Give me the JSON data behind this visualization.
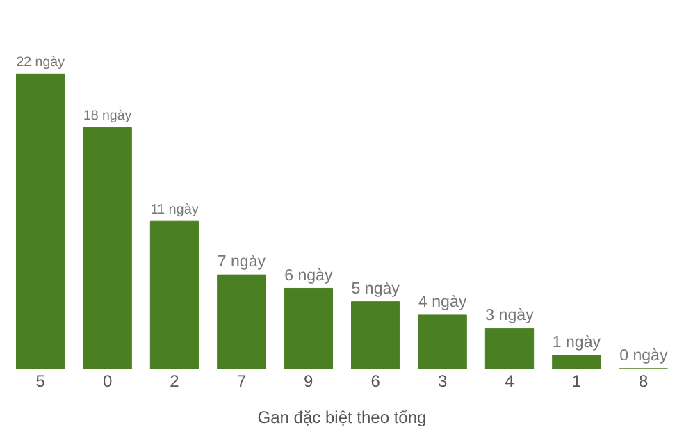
{
  "chart_data": {
    "type": "bar",
    "xlabel": "Gan đặc biệt theo tổng",
    "categories": [
      "5",
      "0",
      "2",
      "7",
      "9",
      "6",
      "3",
      "4",
      "1",
      "8"
    ],
    "values": [
      22,
      18,
      11,
      7,
      6,
      5,
      4,
      3,
      1,
      0
    ],
    "value_labels": [
      "22 ngày",
      "18 ngày",
      "11 ngày",
      "7 ngày",
      "6 ngày",
      "5 ngày",
      "4 ngày",
      "3 ngày",
      "1 ngày",
      "0 ngày"
    ],
    "color": "#4a7f22"
  }
}
